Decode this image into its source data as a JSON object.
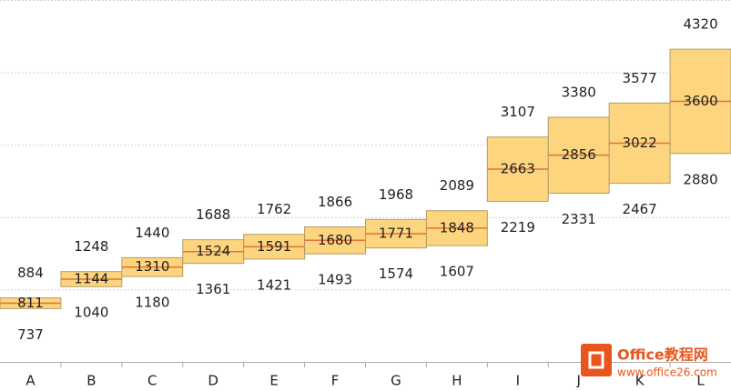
{
  "chart_data": {
    "type": "range_bar",
    "categories": [
      "A",
      "B",
      "C",
      "D",
      "E",
      "F",
      "G",
      "H",
      "I",
      "J",
      "K",
      "L"
    ],
    "low": [
      737,
      1040,
      1180,
      1361,
      1421,
      1493,
      1574,
      1607,
      2219,
      2331,
      2467,
      2880
    ],
    "mid": [
      811,
      1144,
      1310,
      1524,
      1591,
      1680,
      1771,
      1848,
      2663,
      2856,
      3022,
      3600
    ],
    "high": [
      884,
      1248,
      1440,
      1688,
      1762,
      1866,
      1968,
      2089,
      3107,
      3380,
      3577,
      4320
    ],
    "ylim": [
      0,
      5000
    ],
    "yticks": [
      1000,
      2000,
      3000,
      4000,
      5000
    ],
    "grid": true,
    "box_color": "#fdd57e",
    "box_stroke": "#b59c63",
    "mid_color": "#e0733a"
  },
  "watermark": {
    "title": "Office教程网",
    "url": "www.office26.com"
  }
}
